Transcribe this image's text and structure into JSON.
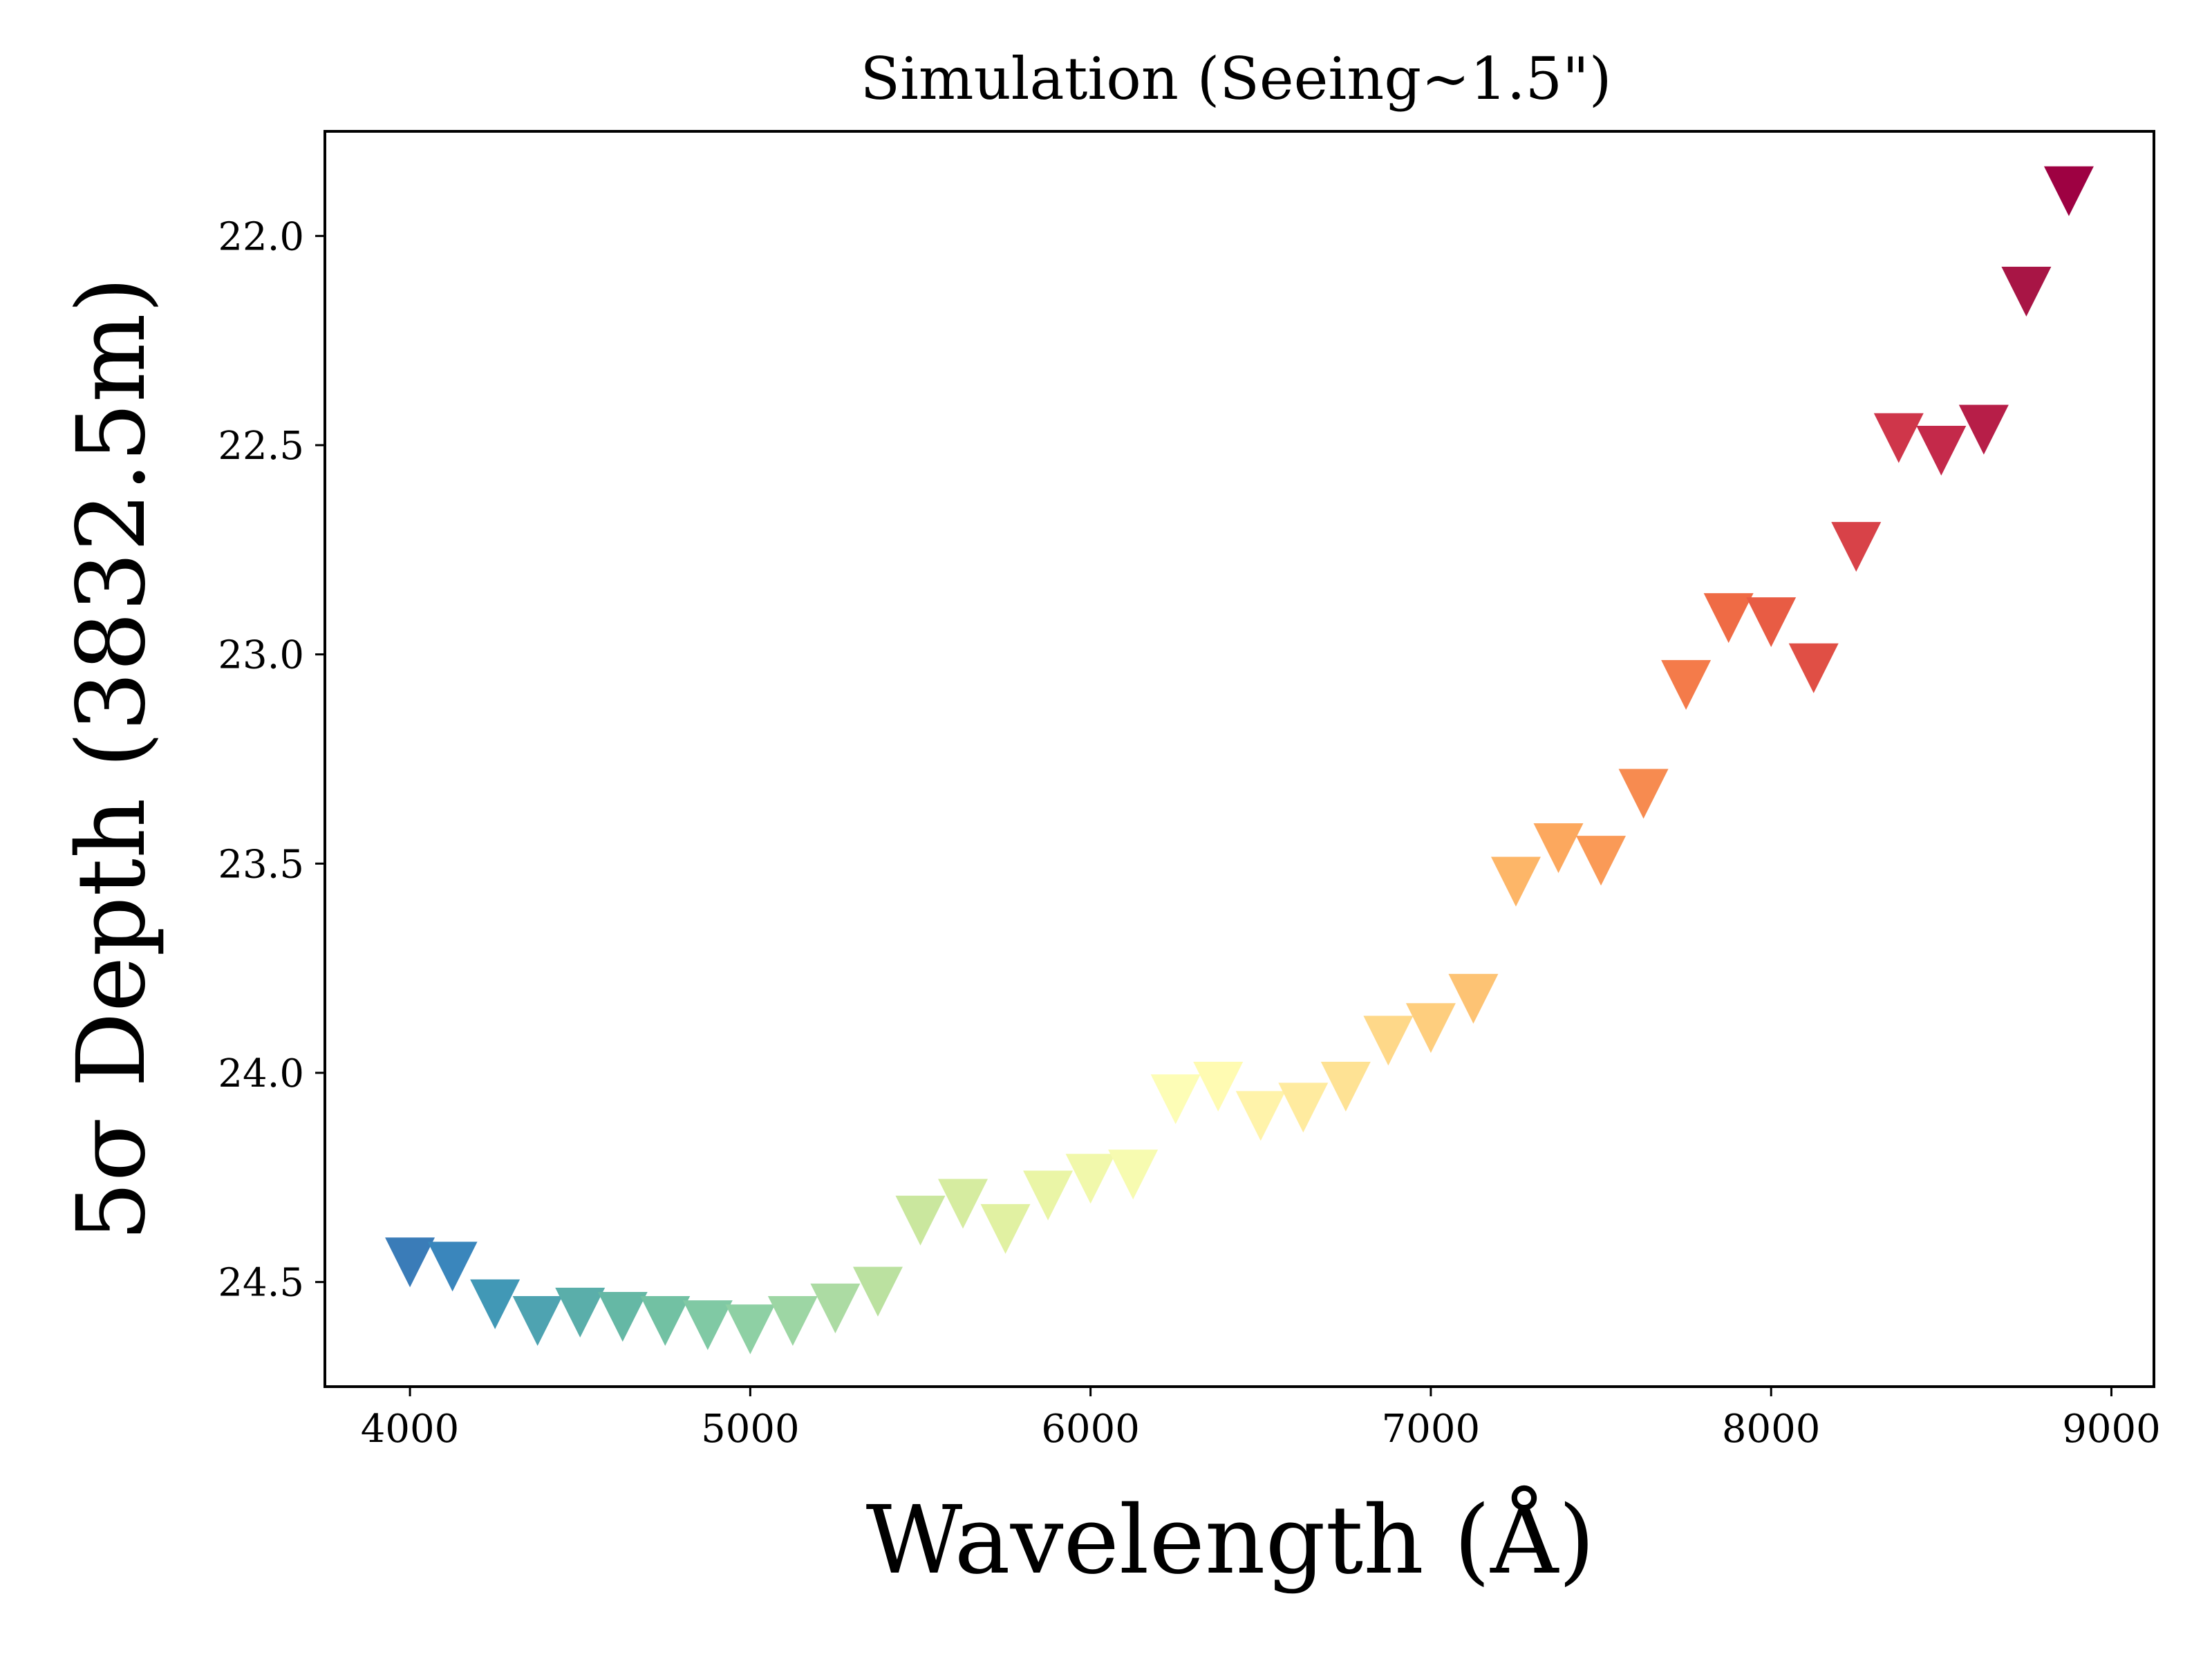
{
  "chart_data": {
    "type": "scatter",
    "title": "Simulation (Seeing~1.5\")",
    "xlabel": "Wavelength (Å)",
    "ylabel": "5σ Depth (3832.5m)",
    "xlim": [
      3750,
      9125
    ],
    "ylim": [
      24.75,
      21.75
    ],
    "y_inverted": true,
    "xticks": [
      4000,
      5000,
      6000,
      7000,
      8000,
      9000
    ],
    "xtick_labels": [
      "4000",
      "5000",
      "6000",
      "7000",
      "8000",
      "9000"
    ],
    "yticks": [
      22.0,
      22.5,
      23.0,
      23.5,
      24.0,
      24.5
    ],
    "ytick_labels": [
      "22.0",
      "22.5",
      "23.0",
      "23.5",
      "24.0",
      "24.5"
    ],
    "marker": "triangle-down",
    "colormap": "Spectral_r",
    "grid": false,
    "legend": "none",
    "points": [
      {
        "x": 4000,
        "y": 24.43,
        "color": "#3a7cb8"
      },
      {
        "x": 4125,
        "y": 24.44,
        "color": "#3a86bc"
      },
      {
        "x": 4250,
        "y": 24.53,
        "color": "#4198b6"
      },
      {
        "x": 4375,
        "y": 24.57,
        "color": "#4ea3b1"
      },
      {
        "x": 4500,
        "y": 24.55,
        "color": "#5aaeaa"
      },
      {
        "x": 4625,
        "y": 24.56,
        "color": "#65b8a5"
      },
      {
        "x": 4750,
        "y": 24.57,
        "color": "#72c1a3"
      },
      {
        "x": 4875,
        "y": 24.58,
        "color": "#80c9a4"
      },
      {
        "x": 5000,
        "y": 24.59,
        "color": "#8ed0a4"
      },
      {
        "x": 5125,
        "y": 24.57,
        "color": "#9dd6a4"
      },
      {
        "x": 5250,
        "y": 24.54,
        "color": "#acdba3"
      },
      {
        "x": 5375,
        "y": 24.5,
        "color": "#bbe1a0"
      },
      {
        "x": 5500,
        "y": 24.33,
        "color": "#cae79e"
      },
      {
        "x": 5625,
        "y": 24.29,
        "color": "#d6eca0"
      },
      {
        "x": 5750,
        "y": 24.35,
        "color": "#e1f1a2"
      },
      {
        "x": 5875,
        "y": 24.27,
        "color": "#eaf5a6"
      },
      {
        "x": 6000,
        "y": 24.23,
        "color": "#f1f8ab"
      },
      {
        "x": 6125,
        "y": 24.22,
        "color": "#f7fbb0"
      },
      {
        "x": 6250,
        "y": 24.04,
        "color": "#fdfdb6"
      },
      {
        "x": 6375,
        "y": 24.01,
        "color": "#fffbb2"
      },
      {
        "x": 6500,
        "y": 24.08,
        "color": "#fff3aa"
      },
      {
        "x": 6625,
        "y": 24.06,
        "color": "#ffeb9f"
      },
      {
        "x": 6750,
        "y": 24.01,
        "color": "#fee294"
      },
      {
        "x": 6875,
        "y": 23.9,
        "color": "#fed889"
      },
      {
        "x": 7000,
        "y": 23.87,
        "color": "#fece7e"
      },
      {
        "x": 7125,
        "y": 23.8,
        "color": "#fdc374"
      },
      {
        "x": 7250,
        "y": 23.52,
        "color": "#fdb668"
      },
      {
        "x": 7375,
        "y": 23.44,
        "color": "#fca85e"
      },
      {
        "x": 7500,
        "y": 23.47,
        "color": "#fa9a57"
      },
      {
        "x": 7625,
        "y": 23.31,
        "color": "#f78b50"
      },
      {
        "x": 7750,
        "y": 23.05,
        "color": "#f47b4a"
      },
      {
        "x": 7875,
        "y": 22.89,
        "color": "#ef6b45"
      },
      {
        "x": 8000,
        "y": 22.9,
        "color": "#e85c44"
      },
      {
        "x": 8125,
        "y": 23.01,
        "color": "#e04f45"
      },
      {
        "x": 8250,
        "y": 22.72,
        "color": "#d84248"
      },
      {
        "x": 8375,
        "y": 22.46,
        "color": "#cf364a"
      },
      {
        "x": 8500,
        "y": 22.49,
        "color": "#c4294a"
      },
      {
        "x": 8625,
        "y": 22.44,
        "color": "#b71e48"
      },
      {
        "x": 8750,
        "y": 22.11,
        "color": "#a81545"
      },
      {
        "x": 8875,
        "y": 21.87,
        "color": "#9e0142"
      }
    ]
  }
}
